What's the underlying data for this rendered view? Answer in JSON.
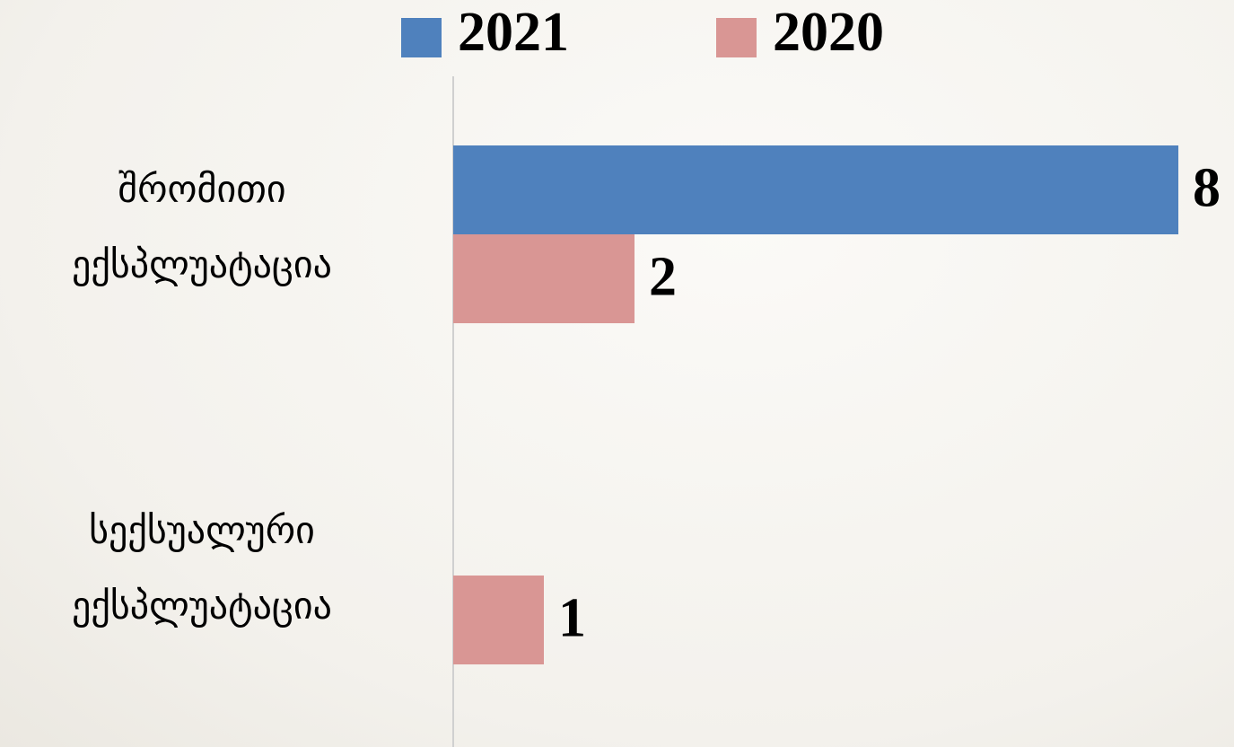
{
  "chart_data": {
    "type": "bar",
    "orientation": "horizontal",
    "categories": [
      "შრომითი ექსპლუატაცია",
      "სექსუალური ექსპლუატაცია"
    ],
    "series": [
      {
        "name": "2021",
        "color": "#4f81bd",
        "values": [
          8,
          null
        ]
      },
      {
        "name": "2020",
        "color": "#d99694",
        "values": [
          2,
          1
        ]
      }
    ],
    "xlim": [
      0,
      8
    ],
    "legend": "top"
  }
}
